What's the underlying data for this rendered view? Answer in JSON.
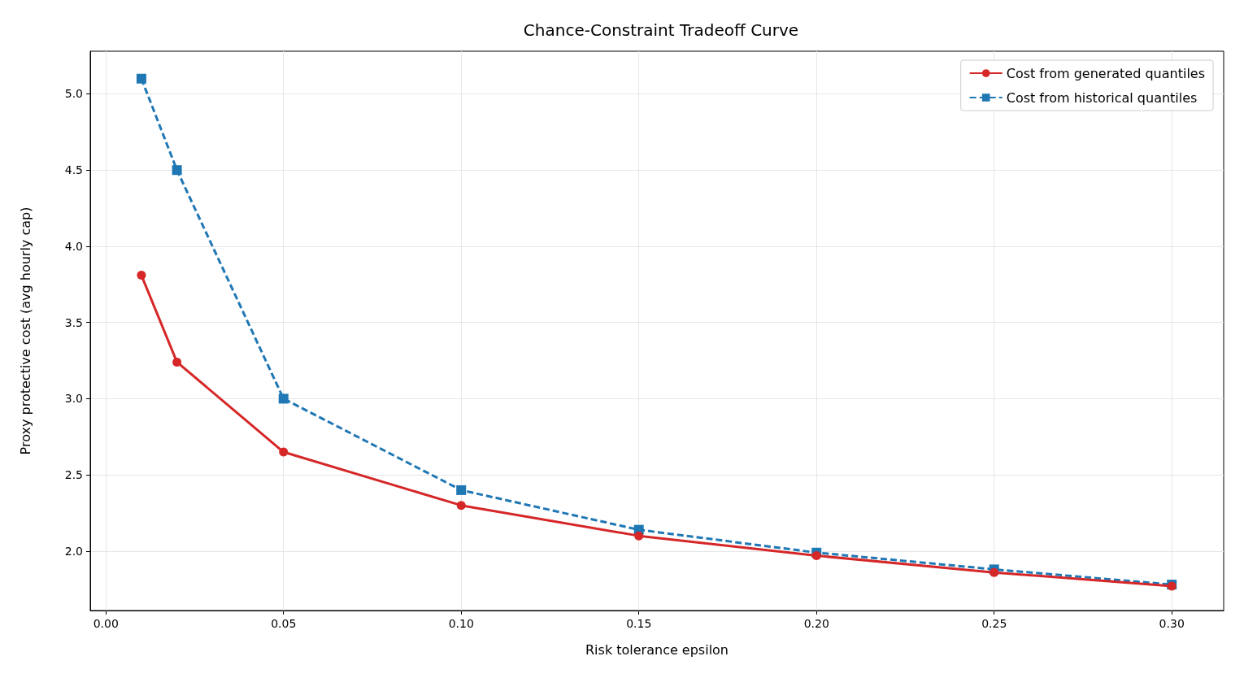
{
  "chart_data": {
    "type": "line",
    "title": "Chance-Constraint Tradeoff Curve",
    "xlabel": "Risk tolerance epsilon",
    "ylabel": "Proxy protective cost (avg hourly cap)",
    "x": [
      0.01,
      0.02,
      0.05,
      0.1,
      0.15,
      0.2,
      0.25,
      0.3
    ],
    "series": [
      {
        "name": "Cost from generated quantiles",
        "color": "#d62728",
        "marker": "circle",
        "line_style": "solid",
        "values": [
          3.81,
          3.24,
          2.65,
          2.3,
          2.1,
          1.97,
          1.86,
          1.77
        ]
      },
      {
        "name": "Cost from historical quantiles",
        "color": "#1f77b4",
        "marker": "square",
        "line_style": "dashed",
        "values": [
          5.1,
          4.5,
          3.0,
          2.4,
          2.14,
          1.99,
          1.88,
          1.78
        ]
      }
    ],
    "xlim": [
      -0.0044,
      0.3146
    ],
    "xticks": [
      {
        "value": 0,
        "label": "0.00"
      },
      {
        "value": 0.05,
        "label": "0.05"
      },
      {
        "value": 0.1,
        "label": "0.10"
      },
      {
        "value": 0.15,
        "label": "0.15"
      },
      {
        "value": 0.2,
        "label": "0.20"
      },
      {
        "value": 0.25,
        "label": "0.25"
      },
      {
        "value": 0.3,
        "label": "0.30"
      }
    ],
    "ylim": [
      1.61,
      5.28
    ],
    "yticks": [
      {
        "value": 2,
        "label": "2.0"
      },
      {
        "value": 2.5,
        "label": "2.5"
      },
      {
        "value": 3,
        "label": "3.0"
      },
      {
        "value": 3.5,
        "label": "3.5"
      },
      {
        "value": 4,
        "label": "4.0"
      },
      {
        "value": 4.5,
        "label": "4.5"
      },
      {
        "value": 5,
        "label": "5.0"
      }
    ],
    "grid": true,
    "legend": "top right"
  }
}
